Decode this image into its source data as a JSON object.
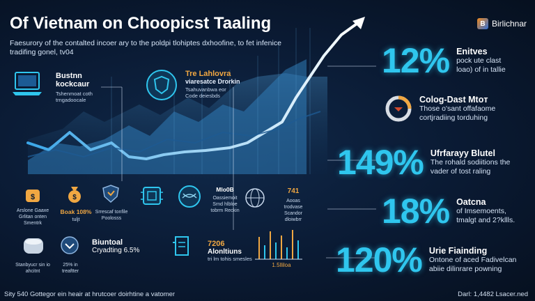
{
  "header": {
    "title": "Of Vietnam on Choopicst Taaling",
    "subtitle": "Faesurory of the contalted incoer ary to the poldpi tlohiptes dxhoofine, to fet infenice tradifing gonel, tv04"
  },
  "brand": {
    "logo": "B",
    "name": "Birlichnar"
  },
  "blocks": {
    "laptop": {
      "title": "Bustnn kockcaur",
      "desc": "Tshenmoat coth trngadoocale"
    },
    "centerIcon": {
      "title": "Tre Lahlovra",
      "subtitle": "viaresatce Drorkin",
      "desc": "Tsahuvanbwa eor Code deiesbds"
    }
  },
  "stats": [
    {
      "value": "12%",
      "title": "Enitves",
      "desc": "pock ute clast loao) of in tallie"
    },
    {
      "value": "",
      "title": "Colog-Dast Mtoт",
      "desc": "Those o'sant offafaome cortjradiing torduhing"
    },
    {
      "value": "149%",
      "title": "Ufrfarayy Blutel",
      "desc": "The rohald sodiitions the vader of tost raling"
    },
    {
      "value": "18%",
      "title": "Oatcna",
      "desc": "of Imsemoents, tmalgt and 2?kllls."
    },
    {
      "value": "120%",
      "title": "Urie Fiainding",
      "desc": "Ontone of aced Fadivelcan abiie dilinrare powning"
    }
  ],
  "bottomIcons": [
    {
      "label": "Arslone Gaaxe Grlitan onten Smentrk",
      "color": "#f0a742"
    },
    {
      "label": "Boak 108%",
      "sub": "tuljt",
      "color": "#f0a742"
    },
    {
      "label": "Srrescaf tonfile Poolosss",
      "color": "#c8d8ec"
    },
    {
      "label": "",
      "color": "#c8d8ec"
    },
    {
      "label": "",
      "color": "#c8d8ec"
    },
    {
      "label": "Mlo0B",
      "sub": "Oassiemoit Srnd hlbloe tobrm Reckin",
      "color": "#ffffff"
    },
    {
      "label": "",
      "color": "#c8d8ec"
    },
    {
      "label": "741",
      "sub": "Aooas trodvase Scandor dloiwbrr",
      "color": "#f0a742"
    }
  ],
  "lowerRow": [
    {
      "label": "Stanbyucr sin io ahcitnt",
      "color": "#c8d8ec"
    },
    {
      "label": "25% in treaftter",
      "color": "#c8d8ec"
    },
    {
      "title": "Biuntoal",
      "sub": "Cryadting 6.5%"
    },
    {
      "title": "7206",
      "sub": "Alonltiuns",
      "desc": "tri lm tohis smesles"
    },
    {
      "label": "1.5lliloa"
    }
  ],
  "footer": {
    "left": "Sity 540 Gottegor ein heair at hrutcoer doirhtine a vatomer",
    "right": "Darl: 1,4482 Lsacer.ned"
  },
  "colors": {
    "accent": "#2fc6ee",
    "gold": "#f0a742",
    "background": "#0a1a33"
  }
}
